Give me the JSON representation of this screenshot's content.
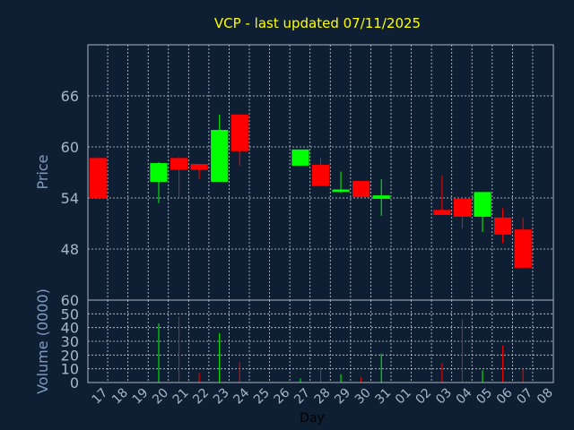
{
  "title": "VCP - last updated 07/11/2025",
  "chart_data": [
    {
      "type": "candlestick",
      "ylabel": "Price",
      "ylim": [
        42,
        72
      ],
      "yticks": [
        48,
        54,
        60,
        66
      ],
      "grid": true,
      "up_color": "#00ff00",
      "down_color": "#ff0000",
      "candles": [
        {
          "x": "17",
          "open": 58.7,
          "close": 54.0,
          "high": 58.8,
          "low": 54.0
        },
        {
          "x": "20",
          "open": 55.9,
          "close": 58.1,
          "high": 58.2,
          "low": 53.4
        },
        {
          "x": "21",
          "open": 58.7,
          "close": 57.3,
          "high": 58.8,
          "low": 54.1
        },
        {
          "x": "22",
          "open": 58.0,
          "close": 57.3,
          "high": 58.0,
          "low": 56.2
        },
        {
          "x": "23",
          "open": 55.9,
          "close": 62.0,
          "high": 63.8,
          "low": 55.9
        },
        {
          "x": "24",
          "open": 63.8,
          "close": 59.5,
          "high": 63.8,
          "low": 57.8
        },
        {
          "x": "27",
          "open": 57.8,
          "close": 59.7,
          "high": 59.7,
          "low": 57.8
        },
        {
          "x": "28",
          "open": 57.9,
          "close": 55.4,
          "high": 58.7,
          "low": 55.4
        },
        {
          "x": "29",
          "open": 54.7,
          "close": 55.0,
          "high": 57.1,
          "low": 54.6
        },
        {
          "x": "30",
          "open": 56.0,
          "close": 54.1,
          "high": 56.0,
          "low": 54.1
        },
        {
          "x": "31",
          "open": 53.9,
          "close": 54.3,
          "high": 56.2,
          "low": 51.9
        },
        {
          "x": "03",
          "open": 52.6,
          "close": 52.0,
          "high": 56.6,
          "low": 52.0
        },
        {
          "x": "04",
          "open": 53.9,
          "close": 51.8,
          "high": 53.9,
          "low": 50.4
        },
        {
          "x": "05",
          "open": 51.8,
          "close": 54.7,
          "high": 54.7,
          "low": 50.0
        },
        {
          "x": "06",
          "open": 51.7,
          "close": 49.7,
          "high": 52.8,
          "low": 48.7
        },
        {
          "x": "07",
          "open": 50.3,
          "close": 45.8,
          "high": 51.7,
          "low": 45.8
        }
      ]
    },
    {
      "type": "bar",
      "ylabel": "Volume (0000)",
      "xlabel": "Day",
      "ylim": [
        0,
        60
      ],
      "yticks": [
        0,
        10,
        20,
        30,
        40,
        50,
        60
      ],
      "grid": true,
      "categories": [
        "17",
        "18",
        "19",
        "20",
        "21",
        "22",
        "23",
        "24",
        "25",
        "26",
        "27",
        "28",
        "29",
        "30",
        "31",
        "01",
        "02",
        "03",
        "04",
        "05",
        "06",
        "07",
        "08"
      ],
      "bars": [
        {
          "x": "20",
          "value": 43,
          "color": "#00ff00"
        },
        {
          "x": "21",
          "value": 48,
          "color": "#ff0000"
        },
        {
          "x": "22",
          "value": 7,
          "color": "#ff0000"
        },
        {
          "x": "23",
          "value": 36,
          "color": "#00ff00"
        },
        {
          "x": "24",
          "value": 15,
          "color": "#ff0000"
        },
        {
          "x": "27",
          "value": 3,
          "color": "#00ff00"
        },
        {
          "x": "28",
          "value": 11,
          "color": "#ff0000"
        },
        {
          "x": "29",
          "value": 6,
          "color": "#00ff00"
        },
        {
          "x": "30",
          "value": 4,
          "color": "#ff0000"
        },
        {
          "x": "31",
          "value": 21,
          "color": "#00ff00"
        },
        {
          "x": "03",
          "value": 14,
          "color": "#ff0000"
        },
        {
          "x": "04",
          "value": 46,
          "color": "#ff0000"
        },
        {
          "x": "05",
          "value": 9,
          "color": "#00ff00"
        },
        {
          "x": "06",
          "value": 27,
          "color": "#ff0000"
        },
        {
          "x": "07",
          "value": 10,
          "color": "#ff0000"
        }
      ]
    }
  ]
}
